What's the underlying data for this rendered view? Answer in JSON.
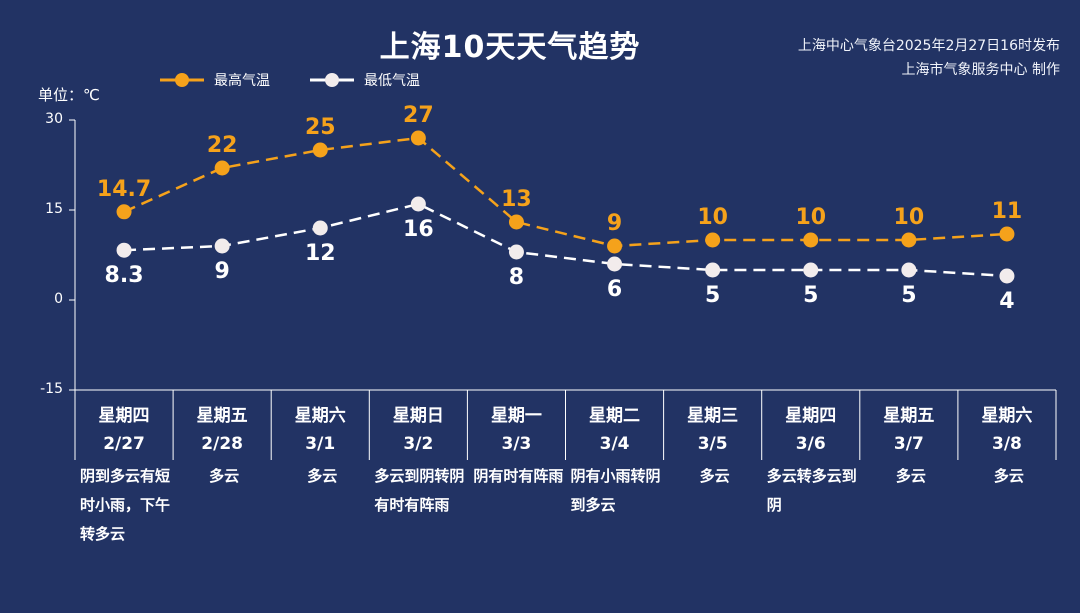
{
  "header": {
    "title": "上海10天天气趋势",
    "source_line1": "上海中心气象台2025年2月27日16时发布",
    "source_line2": "上海市气象服务中心 制作"
  },
  "unit_label": "单位：℃",
  "colors": {
    "background": "#223364",
    "high": "#f5a21b",
    "low": "#ffffff"
  },
  "chart_data": {
    "type": "line",
    "title": "上海10天天气趋势",
    "ylabel": "单位：℃",
    "ylim": [
      -15,
      30
    ],
    "yticks": [
      "30",
      "15",
      "0",
      "-15"
    ],
    "ytick_values": [
      30,
      15,
      0,
      -15
    ],
    "categories": [
      "2/27",
      "2/28",
      "3/1",
      "3/2",
      "3/3",
      "3/4",
      "3/5",
      "3/6",
      "3/7",
      "3/8"
    ],
    "series": [
      {
        "name": "最高气温",
        "values": [
          14.7,
          22,
          25,
          27,
          13,
          9,
          10,
          10,
          10,
          11
        ],
        "labels": [
          "14.7",
          "22",
          "25",
          "27",
          "13",
          "9",
          "10",
          "10",
          "10",
          "11"
        ]
      },
      {
        "name": "最低气温",
        "values": [
          8.3,
          9,
          12,
          16,
          8,
          6,
          5,
          5,
          5,
          4
        ],
        "labels": [
          "8.3",
          "9",
          "12",
          "16",
          "8",
          "6",
          "5",
          "5",
          "5",
          "4"
        ]
      }
    ],
    "legend": "top-left",
    "grid": false
  },
  "days": [
    {
      "weekday": "星期四",
      "date": "2/27",
      "weather": "阴到多云有短时小雨，下午转多云"
    },
    {
      "weekday": "星期五",
      "date": "2/28",
      "weather": "多云"
    },
    {
      "weekday": "星期六",
      "date": "3/1",
      "weather": "多云"
    },
    {
      "weekday": "星期日",
      "date": "3/2",
      "weather": "多云到阴转阴有时有阵雨"
    },
    {
      "weekday": "星期一",
      "date": "3/3",
      "weather": "阴有时有阵雨"
    },
    {
      "weekday": "星期二",
      "date": "3/4",
      "weather": "阴有小雨转阴到多云"
    },
    {
      "weekday": "星期三",
      "date": "3/5",
      "weather": "多云"
    },
    {
      "weekday": "星期四",
      "date": "3/6",
      "weather": "多云转多云到阴"
    },
    {
      "weekday": "星期五",
      "date": "3/7",
      "weather": "多云"
    },
    {
      "weekday": "星期六",
      "date": "3/8",
      "weather": "多云"
    }
  ]
}
